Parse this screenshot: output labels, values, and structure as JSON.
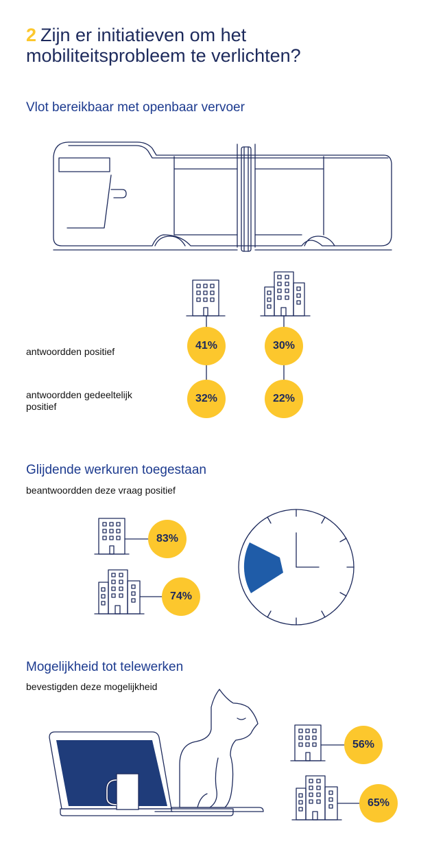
{
  "header": {
    "number": "2",
    "title": "Zijn er initiatieven om het mobiliteitsprobleem te verlichten?"
  },
  "section_transport": {
    "title": "Vlot bereikbaar met openbaar vervoer",
    "row_positive_label": "antwoordden positief",
    "row_partial_label": "antwoordden gedeeltelijk positief",
    "small_building": {
      "positive": "41%",
      "partial": "32%"
    },
    "large_building": {
      "positive": "30%",
      "partial": "22%"
    }
  },
  "section_flex": {
    "title": "Glijdende werkuren toegestaan",
    "subtitle": "beantwoordden deze vraag positief",
    "small_building_value": "83%",
    "large_building_value": "74%"
  },
  "section_telework": {
    "title": "Mogelijkheid tot telewerken",
    "subtitle": "bevestigden deze mogelijkheid",
    "small_building_value": "56%",
    "large_building_value": "65%"
  },
  "colors": {
    "navy": "#1d2a5c",
    "title_blue": "#1d3b8f",
    "yellow": "#fcc72d",
    "clock_fill": "#1f5ca8",
    "laptop_screen": "#1f3c7a"
  },
  "icons": [
    "tram-icon",
    "small-office-building-icon",
    "large-office-building-icon",
    "clock-icon",
    "laptop-icon",
    "mug-icon",
    "cat-icon"
  ]
}
